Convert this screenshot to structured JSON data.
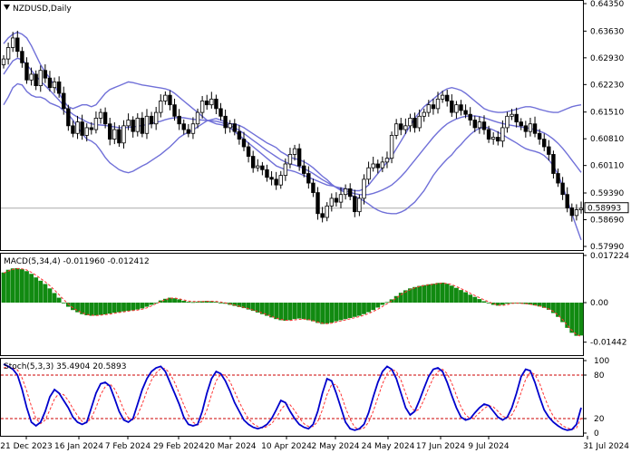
{
  "window": {
    "symbol_title": "NZDUSD,Daily"
  },
  "colors": {
    "background": "#ffffff",
    "border": "#000000",
    "bollinger": "#7070d8",
    "candle_up_body": "#ffffff",
    "candle_down_body": "#000000",
    "macd_hist": "#118a11",
    "macd_signal": "#ff3333",
    "stoch_main": "#0000cc",
    "stoch_signal": "#ff3333",
    "stoch_levels": "#cc0000",
    "last_price_line": "#aaaaaa"
  },
  "price_panel": {
    "last_price_label": "0.58993",
    "ticks": [
      "0.64350",
      "0.63630",
      "0.62930",
      "0.62230",
      "0.61510",
      "0.60810",
      "0.60110",
      "0.59390",
      "0.58690",
      "0.57990"
    ]
  },
  "macd_panel": {
    "label": "MACD(5,34,4) -0.011960 -0.012412",
    "ticks": [
      "0.017224",
      "0.00",
      "-0.01442"
    ]
  },
  "stoch_panel": {
    "label": "Stoch(5,3,3) 35.4904 20.5893",
    "ticks": [
      "100",
      "80",
      "20",
      "0"
    ]
  },
  "x_axis": {
    "labels": [
      "21 Dec 2023",
      "16 Jan 2024",
      "7 Feb 2024",
      "29 Feb 2024",
      "20 Mar 2024",
      "10 Apr 2024",
      "2 May 2024",
      "24 May 2024",
      "17 Jun 2024",
      "9 Jul 2024",
      "31 Jul 2024"
    ]
  },
  "chart_data": [
    {
      "type": "candlestick",
      "title": "NZDUSD,Daily",
      "ylim": [
        0.5799,
        0.6435
      ],
      "closes": [
        0.629,
        0.632,
        0.6345,
        0.631,
        0.628,
        0.6235,
        0.625,
        0.622,
        0.626,
        0.624,
        0.6215,
        0.623,
        0.62,
        0.616,
        0.6115,
        0.6095,
        0.6125,
        0.609,
        0.611,
        0.6105,
        0.6135,
        0.615,
        0.612,
        0.608,
        0.6105,
        0.607,
        0.6115,
        0.613,
        0.61,
        0.6135,
        0.6095,
        0.614,
        0.612,
        0.615,
        0.618,
        0.6195,
        0.617,
        0.614,
        0.612,
        0.6105,
        0.6095,
        0.612,
        0.615,
        0.618,
        0.617,
        0.6185,
        0.616,
        0.614,
        0.611,
        0.612,
        0.61,
        0.608,
        0.606,
        0.6035,
        0.6005,
        0.601,
        0.6,
        0.598,
        0.5975,
        0.596,
        0.5985,
        0.6015,
        0.604,
        0.6055,
        0.601,
        0.599,
        0.5965,
        0.594,
        0.5885,
        0.5875,
        0.5905,
        0.5925,
        0.5915,
        0.5935,
        0.595,
        0.593,
        0.589,
        0.5925,
        0.5975,
        0.6005,
        0.6015,
        0.6005,
        0.602,
        0.603,
        0.609,
        0.612,
        0.6105,
        0.6115,
        0.6135,
        0.611,
        0.614,
        0.615,
        0.617,
        0.616,
        0.6185,
        0.6195,
        0.618,
        0.615,
        0.617,
        0.6155,
        0.6145,
        0.613,
        0.611,
        0.6125,
        0.6105,
        0.608,
        0.6085,
        0.6075,
        0.611,
        0.614,
        0.6145,
        0.6125,
        0.6115,
        0.61,
        0.612,
        0.6095,
        0.608,
        0.606,
        0.604,
        0.599,
        0.5965,
        0.5935,
        0.59,
        0.588,
        0.5895,
        0.5899
      ],
      "bollinger_upper": [
        0.633,
        0.6345,
        0.6355,
        0.636,
        0.6355,
        0.6345,
        0.6325,
        0.63,
        0.6275,
        0.6255,
        0.624,
        0.622,
        0.62,
        0.618,
        0.6165,
        0.616,
        0.6165,
        0.617,
        0.617,
        0.6165,
        0.617,
        0.6185,
        0.62,
        0.621,
        0.6215,
        0.622,
        0.6225,
        0.623,
        0.6228,
        0.6225,
        0.6222,
        0.622,
        0.6218,
        0.6216,
        0.6214,
        0.6212,
        0.6208,
        0.62,
        0.619,
        0.618,
        0.617,
        0.616,
        0.615,
        0.614,
        0.613,
        0.6125,
        0.612,
        0.6118,
        0.6115,
        0.611,
        0.61,
        0.609,
        0.608,
        0.607,
        0.606,
        0.605,
        0.604,
        0.603,
        0.602,
        0.601,
        0.6005,
        0.6,
        0.5998,
        0.5995,
        0.599,
        0.5985,
        0.598,
        0.5975,
        0.597,
        0.5965,
        0.596,
        0.5958,
        0.5955,
        0.5952,
        0.595,
        0.5948,
        0.5945,
        0.5945,
        0.595,
        0.596,
        0.5975,
        0.599,
        0.6005,
        0.602,
        0.6035,
        0.6055,
        0.6075,
        0.6095,
        0.6115,
        0.6135,
        0.615,
        0.6165,
        0.6175,
        0.6185,
        0.6195,
        0.6205,
        0.6212,
        0.6215,
        0.6212,
        0.6208,
        0.62,
        0.619,
        0.618,
        0.617,
        0.616,
        0.6155,
        0.6152,
        0.615,
        0.615,
        0.6152,
        0.6155,
        0.6158,
        0.6162,
        0.6165,
        0.6165,
        0.6162,
        0.6158,
        0.6155,
        0.6152,
        0.615,
        0.615,
        0.6155,
        0.616,
        0.6165,
        0.6168,
        0.617
      ],
      "bollinger_middle": [
        0.625,
        0.6268,
        0.6285,
        0.6292,
        0.6288,
        0.6275,
        0.626,
        0.6245,
        0.6232,
        0.622,
        0.6208,
        0.6195,
        0.6182,
        0.6168,
        0.6155,
        0.6145,
        0.6138,
        0.6132,
        0.6125,
        0.612,
        0.6118,
        0.6117,
        0.6116,
        0.6114,
        0.6112,
        0.611,
        0.611,
        0.6111,
        0.6112,
        0.6114,
        0.6116,
        0.6118,
        0.6121,
        0.6124,
        0.6127,
        0.6131,
        0.6134,
        0.6136,
        0.6137,
        0.6136,
        0.6134,
        0.6132,
        0.6131,
        0.613,
        0.6129,
        0.6128,
        0.6127,
        0.6124,
        0.612,
        0.6115,
        0.611,
        0.6103,
        0.6095,
        0.6086,
        0.6077,
        0.6068,
        0.6059,
        0.605,
        0.6042,
        0.6034,
        0.6026,
        0.602,
        0.6015,
        0.6012,
        0.6008,
        0.6003,
        0.5997,
        0.599,
        0.5982,
        0.5974,
        0.5967,
        0.596,
        0.5954,
        0.5949,
        0.5945,
        0.5941,
        0.5937,
        0.5935,
        0.5934,
        0.5935,
        0.5938,
        0.5942,
        0.5947,
        0.5953,
        0.596,
        0.597,
        0.5982,
        0.5995,
        0.601,
        0.6025,
        0.604,
        0.6055,
        0.607,
        0.6085,
        0.6098,
        0.611,
        0.612,
        0.6127,
        0.6133,
        0.6137,
        0.614,
        0.6141,
        0.6141,
        0.6139,
        0.6136,
        0.6132,
        0.6128,
        0.6124,
        0.6121,
        0.6118,
        0.6116,
        0.6114,
        0.6112,
        0.611,
        0.6108,
        0.6105,
        0.6101,
        0.6096,
        0.6089,
        0.608,
        0.6069,
        0.6056,
        0.6041,
        0.6025,
        0.6009,
        0.5993
      ],
      "bollinger_lower": [
        0.617,
        0.619,
        0.6215,
        0.6225,
        0.6222,
        0.6205,
        0.6195,
        0.619,
        0.619,
        0.6185,
        0.6175,
        0.617,
        0.6165,
        0.6155,
        0.6145,
        0.613,
        0.611,
        0.6095,
        0.608,
        0.6075,
        0.6066,
        0.605,
        0.6032,
        0.6018,
        0.6009,
        0.6,
        0.5995,
        0.5992,
        0.5996,
        0.6003,
        0.601,
        0.6016,
        0.6024,
        0.6032,
        0.604,
        0.605,
        0.606,
        0.6072,
        0.6084,
        0.6092,
        0.6098,
        0.6104,
        0.6112,
        0.612,
        0.6128,
        0.6131,
        0.6134,
        0.613,
        0.6125,
        0.612,
        0.612,
        0.6116,
        0.611,
        0.6102,
        0.6094,
        0.6086,
        0.6078,
        0.607,
        0.6064,
        0.6058,
        0.6047,
        0.604,
        0.6032,
        0.6029,
        0.6026,
        0.6021,
        0.6014,
        0.6005,
        0.5994,
        0.5983,
        0.5974,
        0.5962,
        0.5953,
        0.5946,
        0.594,
        0.5934,
        0.5929,
        0.5925,
        0.5918,
        0.591,
        0.5901,
        0.5894,
        0.5889,
        0.5886,
        0.5885,
        0.5885,
        0.5889,
        0.5895,
        0.5905,
        0.5915,
        0.593,
        0.5945,
        0.5965,
        0.5985,
        0.6001,
        0.6015,
        0.6028,
        0.6039,
        0.6054,
        0.6066,
        0.608,
        0.6092,
        0.6102,
        0.6108,
        0.6112,
        0.6109,
        0.6104,
        0.6098,
        0.6092,
        0.6084,
        0.6077,
        0.607,
        0.6062,
        0.6055,
        0.6051,
        0.6048,
        0.6044,
        0.6037,
        0.6026,
        0.601,
        0.5988,
        0.5957,
        0.5922,
        0.5885,
        0.585,
        0.5816
      ]
    },
    {
      "type": "bar",
      "title": "MACD(5,34,4) -0.011960 -0.012412",
      "ylim": [
        -0.0185,
        0.0172
      ],
      "histogram": [
        0.011,
        0.012,
        0.0125,
        0.0126,
        0.0122,
        0.0115,
        0.0105,
        0.0092,
        0.008,
        0.0068,
        0.0052,
        0.0035,
        0.0018,
        0.0,
        -0.0015,
        -0.0027,
        -0.0035,
        -0.0042,
        -0.0046,
        -0.0048,
        -0.0047,
        -0.0045,
        -0.0043,
        -0.004,
        -0.0037,
        -0.0035,
        -0.0032,
        -0.003,
        -0.0028,
        -0.0025,
        -0.0021,
        -0.0015,
        -0.0008,
        0.0,
        0.0008,
        0.0014,
        0.0018,
        0.0016,
        0.0012,
        0.0007,
        0.0003,
        0.0002,
        0.0003,
        0.0005,
        0.0006,
        0.0005,
        0.0003,
        0.0,
        -0.0004,
        -0.0008,
        -0.0012,
        -0.0016,
        -0.002,
        -0.0025,
        -0.003,
        -0.0036,
        -0.0042,
        -0.0048,
        -0.0054,
        -0.006,
        -0.0064,
        -0.0066,
        -0.0064,
        -0.006,
        -0.0058,
        -0.006,
        -0.0064,
        -0.0068,
        -0.0074,
        -0.0078,
        -0.0077,
        -0.0073,
        -0.0068,
        -0.0064,
        -0.006,
        -0.0056,
        -0.0052,
        -0.0048,
        -0.0042,
        -0.0035,
        -0.0027,
        -0.0018,
        -0.0008,
        0.0002,
        0.0012,
        0.0024,
        0.0036,
        0.0045,
        0.0052,
        0.0057,
        0.0061,
        0.0064,
        0.0067,
        0.0069,
        0.0072,
        0.0073,
        0.0069,
        0.0062,
        0.0054,
        0.0046,
        0.0038,
        0.0029,
        0.0021,
        0.0013,
        0.0005,
        -0.0002,
        -0.0008,
        -0.0011,
        -0.0008,
        -0.0004,
        -0.0001,
        -0.0002,
        -0.0003,
        -0.0005,
        -0.0007,
        -0.001,
        -0.0014,
        -0.0019,
        -0.0026,
        -0.0038,
        -0.0052,
        -0.0071,
        -0.0092,
        -0.011,
        -0.0121,
        -0.012
      ],
      "signal": [
        0.0108,
        0.0115,
        0.0121,
        0.0124,
        0.0123,
        0.0119,
        0.0111,
        0.01,
        0.0088,
        0.0076,
        0.0062,
        0.0046,
        0.0029,
        0.0011,
        -0.0005,
        -0.0019,
        -0.0029,
        -0.0037,
        -0.0043,
        -0.0046,
        -0.0047,
        -0.0046,
        -0.0044,
        -0.0042,
        -0.0039,
        -0.0036,
        -0.0034,
        -0.0031,
        -0.0029,
        -0.0027,
        -0.0024,
        -0.0019,
        -0.0012,
        -0.0004,
        0.0004,
        0.0011,
        0.0016,
        0.0017,
        0.0014,
        0.001,
        0.0006,
        0.0004,
        0.0004,
        0.0004,
        0.0005,
        0.0005,
        0.0004,
        0.0002,
        -0.0001,
        -0.0005,
        -0.0009,
        -0.0013,
        -0.0017,
        -0.0022,
        -0.0027,
        -0.0032,
        -0.0038,
        -0.0044,
        -0.005,
        -0.0056,
        -0.0061,
        -0.0064,
        -0.0065,
        -0.0063,
        -0.0061,
        -0.006,
        -0.0062,
        -0.0066,
        -0.0071,
        -0.0075,
        -0.0077,
        -0.0075,
        -0.0071,
        -0.0067,
        -0.0063,
        -0.0059,
        -0.0055,
        -0.0051,
        -0.0046,
        -0.004,
        -0.0032,
        -0.0024,
        -0.0014,
        -0.0004,
        0.0006,
        0.0017,
        0.0029,
        0.0039,
        0.0047,
        0.0054,
        0.0059,
        0.0062,
        0.0065,
        0.0067,
        0.007,
        0.0071,
        0.007,
        0.0066,
        0.0059,
        0.0051,
        0.0043,
        0.0034,
        0.0026,
        0.0018,
        0.001,
        0.0003,
        -0.0004,
        -0.0009,
        -0.001,
        -0.0007,
        -0.0003,
        -0.0002,
        -0.0003,
        -0.0004,
        -0.0006,
        -0.0009,
        -0.0012,
        -0.0017,
        -0.0023,
        -0.0032,
        -0.0045,
        -0.0062,
        -0.0082,
        -0.0101,
        -0.0116,
        -0.0124
      ]
    },
    {
      "type": "line",
      "title": "Stoch(5,3,3) 35.4904 20.5893",
      "ylim": [
        0,
        100
      ],
      "levels": [
        80,
        20
      ],
      "main": [
        95,
        92,
        88,
        80,
        60,
        35,
        15,
        10,
        15,
        30,
        50,
        60,
        55,
        45,
        35,
        22,
        15,
        12,
        15,
        35,
        55,
        68,
        70,
        65,
        48,
        30,
        18,
        15,
        20,
        40,
        60,
        75,
        85,
        90,
        92,
        85,
        70,
        55,
        40,
        22,
        12,
        10,
        12,
        30,
        55,
        75,
        85,
        82,
        72,
        58,
        42,
        30,
        18,
        12,
        8,
        6,
        8,
        12,
        20,
        32,
        45,
        42,
        30,
        20,
        12,
        8,
        6,
        12,
        30,
        55,
        75,
        72,
        55,
        35,
        15,
        6,
        4,
        6,
        12,
        28,
        50,
        70,
        85,
        92,
        88,
        75,
        55,
        35,
        25,
        30,
        45,
        62,
        78,
        88,
        90,
        85,
        70,
        52,
        35,
        22,
        18,
        20,
        28,
        35,
        40,
        38,
        30,
        22,
        18,
        22,
        35,
        55,
        78,
        88,
        86,
        70,
        50,
        32,
        22,
        15,
        10,
        6,
        4,
        5,
        12,
        35
      ],
      "signal": [
        90,
        91,
        90,
        87,
        76,
        58,
        37,
        20,
        13,
        18,
        32,
        47,
        55,
        53,
        45,
        34,
        24,
        16,
        14,
        21,
        35,
        53,
        64,
        68,
        61,
        48,
        32,
        21,
        18,
        25,
        40,
        58,
        73,
        83,
        89,
        89,
        82,
        70,
        55,
        39,
        25,
        15,
        11,
        17,
        32,
        53,
        72,
        81,
        80,
        71,
        57,
        43,
        30,
        20,
        13,
        9,
        7,
        9,
        13,
        21,
        32,
        40,
        39,
        31,
        21,
        13,
        9,
        9,
        16,
        32,
        53,
        67,
        67,
        54,
        35,
        19,
        8,
        5,
        7,
        15,
        30,
        49,
        68,
        82,
        88,
        85,
        73,
        55,
        38,
        30,
        33,
        46,
        62,
        76,
        85,
        88,
        82,
        69,
        52,
        36,
        25,
        20,
        22,
        28,
        34,
        38,
        36,
        30,
        23,
        21,
        25,
        37,
        56,
        74,
        84,
        81,
        69,
        51,
        35,
        23,
        16,
        10,
        7,
        5,
        7,
        21
      ]
    }
  ]
}
